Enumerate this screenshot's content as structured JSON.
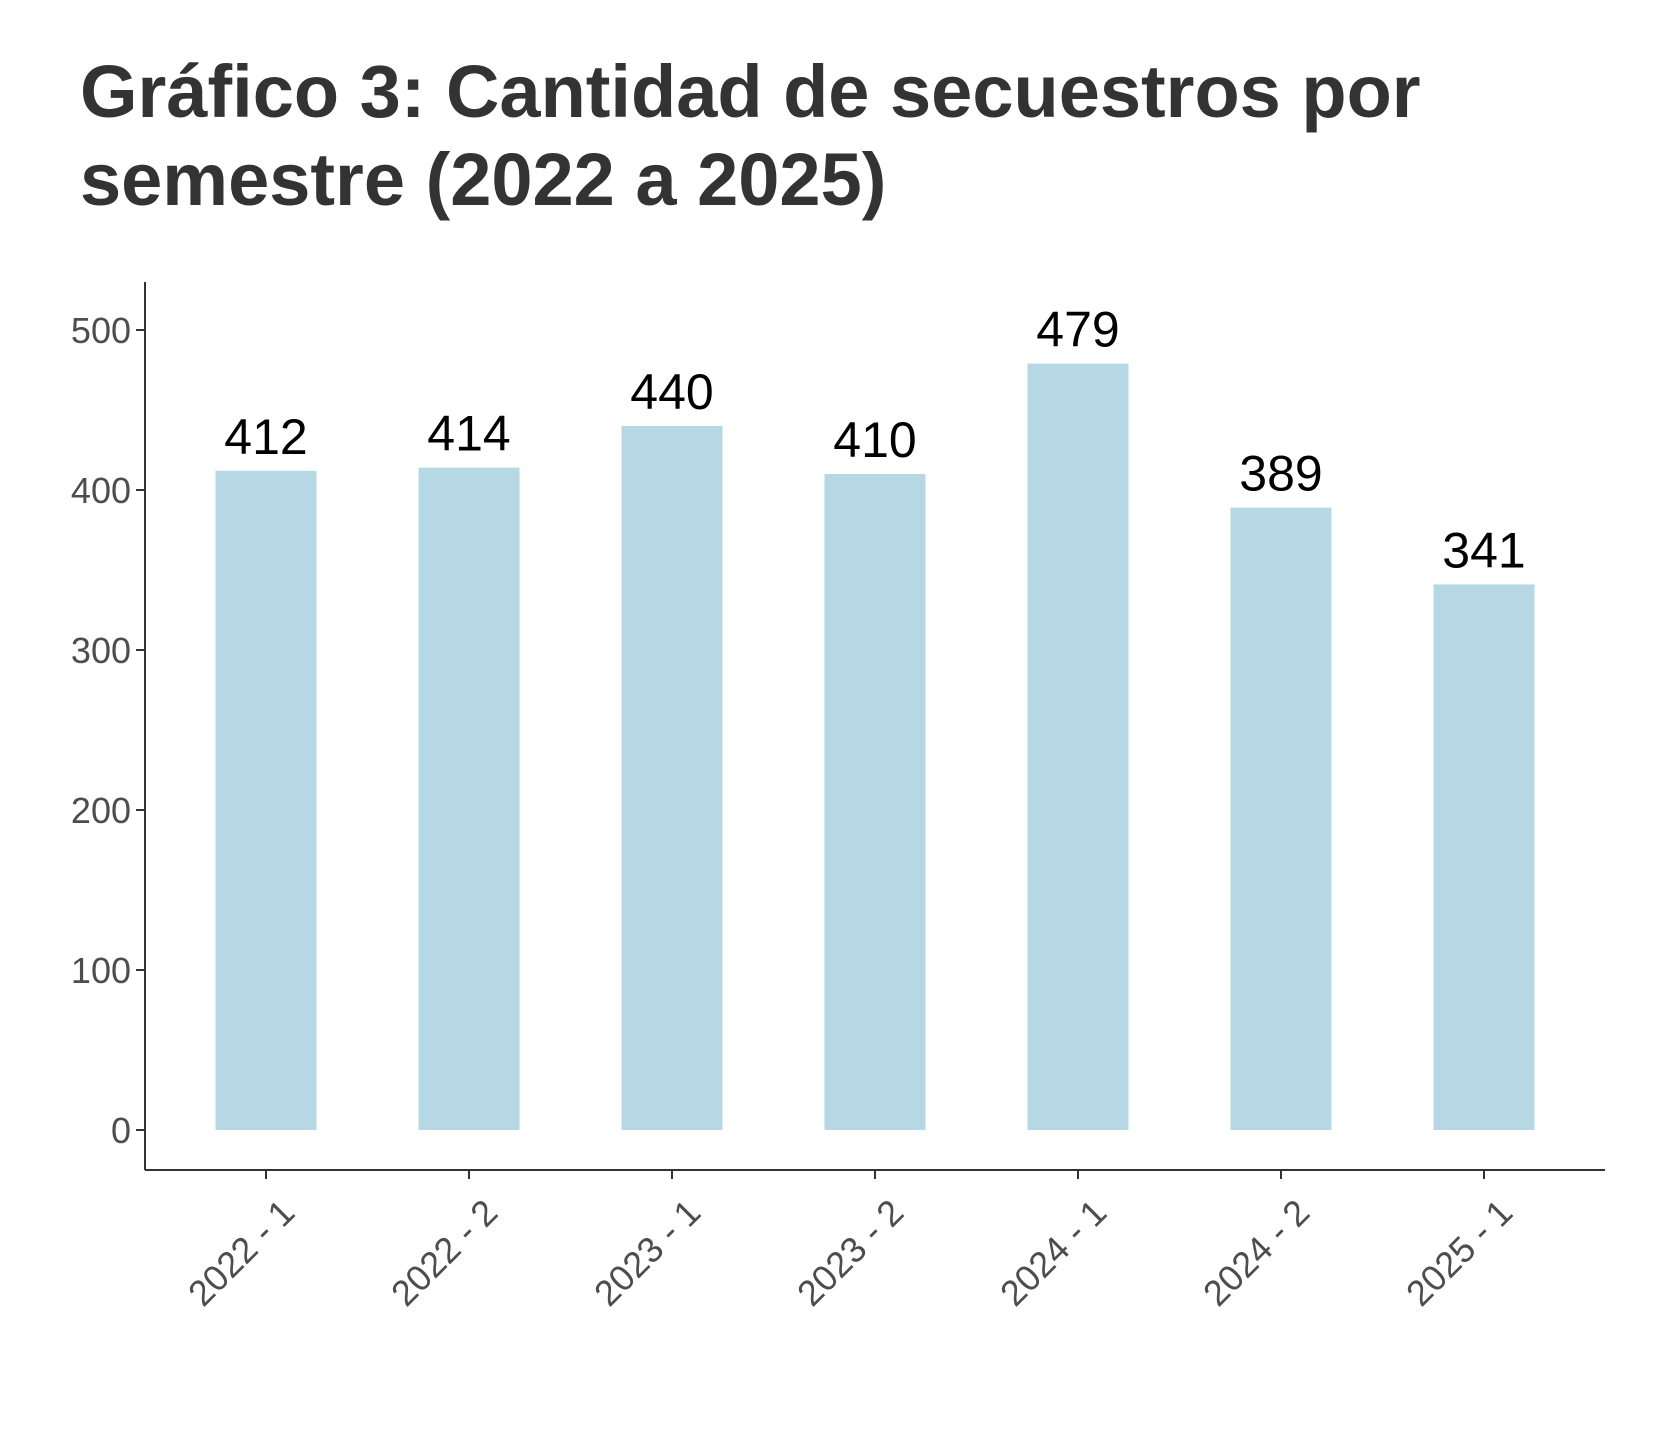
{
  "chart_title": "Gráfico 3: Cantidad de secuestros por semestre (2022 a 2025)",
  "chart_data": {
    "type": "bar",
    "title": "Gráfico 3: Cantidad de secuestros por semestre (2022 a 2025)",
    "categories": [
      "2022 - 1",
      "2022 - 2",
      "2023 - 1",
      "2023 - 2",
      "2024 - 1",
      "2024 - 2",
      "2025 - 1"
    ],
    "values": [
      412,
      414,
      440,
      410,
      479,
      389,
      341
    ],
    "data_labels": [
      "412",
      "414",
      "440",
      "410",
      "479",
      "389",
      "341"
    ],
    "yticks": [
      0,
      100,
      200,
      300,
      400,
      500
    ],
    "ytick_labels": [
      "0",
      "100",
      "200",
      "300",
      "400",
      "500"
    ],
    "ylim": [
      0,
      525
    ],
    "xlabel": "",
    "ylabel": "",
    "grid": false,
    "legend": "none",
    "bar_color": "#b6d8e4",
    "axis_color": "#333333"
  }
}
